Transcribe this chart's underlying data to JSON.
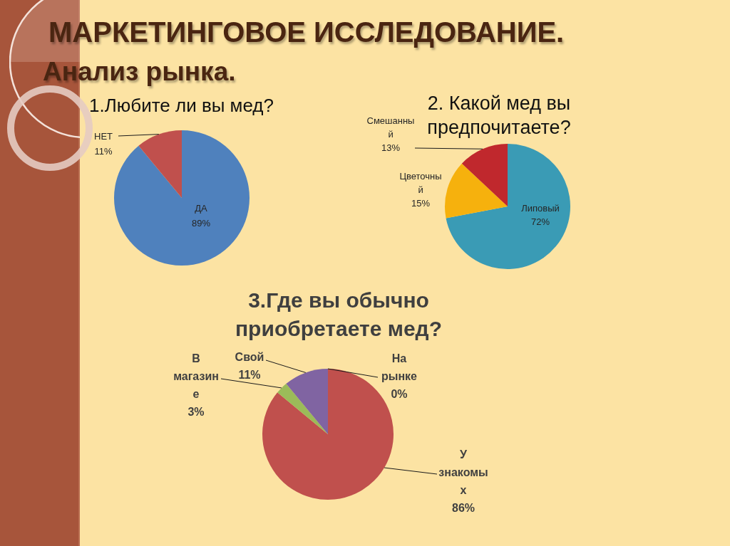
{
  "chart_data": [
    {
      "type": "other",
      "title": "МАРКЕТИНГОВОЕ ИССЛЕДОВАНИЕ.",
      "subtitle": "Анализ рынка."
    },
    {
      "type": "pie",
      "title": "1.Любите ли вы мед?",
      "categories": [
        "ДА",
        "НЕТ"
      ],
      "values": [
        89,
        11
      ],
      "value_labels": [
        "89%",
        "11%"
      ],
      "colors": [
        "#4f81bd",
        "#c0504d"
      ]
    },
    {
      "type": "pie",
      "title": "2. Какой мед вы предпочитаете?",
      "categories": [
        "Липовый",
        "Цветочный",
        "Смешанный"
      ],
      "values": [
        72,
        15,
        13
      ],
      "value_labels": [
        "72%",
        "15%",
        "13%"
      ],
      "colors": [
        "#3a9bb5",
        "#f6b10d",
        "#c0282d"
      ]
    },
    {
      "type": "pie",
      "title": "3.Где вы обычно приобретаете мед?",
      "categories": [
        "На рынке",
        "У знакомых",
        "В магазине",
        "Свой"
      ],
      "values": [
        0,
        86,
        3,
        11
      ],
      "value_labels": [
        "0%",
        "86%",
        "3%",
        "11%"
      ],
      "colors": [
        "#4f81bd",
        "#c0504d",
        "#9bbb59",
        "#8064a2"
      ]
    }
  ]
}
